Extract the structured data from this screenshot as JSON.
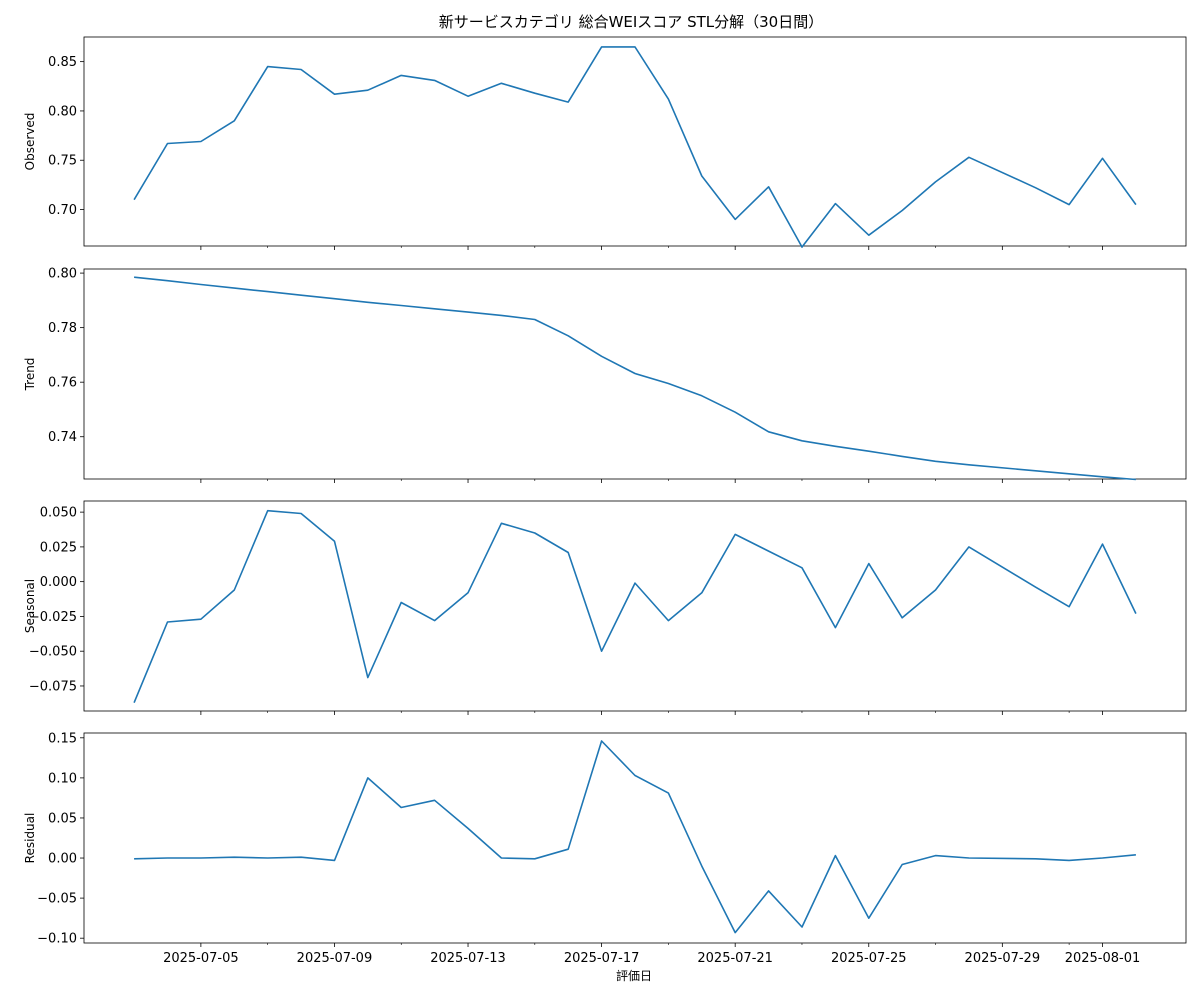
{
  "chart_data": {
    "type": "line",
    "title": "新サービスカテゴリ 総合WEIスコア STL分解（30日間）",
    "xlabel": "評価日",
    "line_color": "#1f77b4",
    "x": [
      "2025-07-03",
      "2025-07-04",
      "2025-07-05",
      "2025-07-06",
      "2025-07-07",
      "2025-07-08",
      "2025-07-09",
      "2025-07-10",
      "2025-07-11",
      "2025-07-12",
      "2025-07-13",
      "2025-07-14",
      "2025-07-15",
      "2025-07-16",
      "2025-07-17",
      "2025-07-18",
      "2025-07-19",
      "2025-07-20",
      "2025-07-21",
      "2025-07-22",
      "2025-07-23",
      "2025-07-24",
      "2025-07-25",
      "2025-07-26",
      "2025-07-27",
      "2025-07-28",
      "2025-07-30",
      "2025-07-31",
      "2025-08-01",
      "2025-08-02"
    ],
    "x_ticks": [
      "2025-07-05",
      "2025-07-09",
      "2025-07-13",
      "2025-07-17",
      "2025-07-21",
      "2025-07-25",
      "2025-07-29",
      "2025-08-01"
    ],
    "x_minor_ticks": [
      "2025-07-07",
      "2025-07-11",
      "2025-07-15",
      "2025-07-19",
      "2025-07-23",
      "2025-07-27",
      "2025-07-31"
    ],
    "panels": [
      {
        "name": "observed",
        "ylabel": "Observed",
        "ylim": [
          0.663,
          0.875
        ],
        "yticks": [
          0.7,
          0.75,
          0.8,
          0.85
        ],
        "ytick_labels": [
          "0.70",
          "0.75",
          "0.80",
          "0.85"
        ],
        "values": [
          0.71,
          0.767,
          0.769,
          0.79,
          0.845,
          0.842,
          0.817,
          0.821,
          0.836,
          0.831,
          0.815,
          0.828,
          0.818,
          0.809,
          0.865,
          0.865,
          0.812,
          0.734,
          0.69,
          0.723,
          0.662,
          0.706,
          0.674,
          0.699,
          0.728,
          0.753,
          0.722,
          0.705,
          0.752,
          0.705
        ]
      },
      {
        "name": "trend",
        "ylabel": "Trend",
        "ylim": [
          0.7245,
          0.8015
        ],
        "yticks": [
          0.74,
          0.76,
          0.78,
          0.8
        ],
        "ytick_labels": [
          "0.74",
          "0.76",
          "0.78",
          "0.80"
        ],
        "values": [
          0.7985,
          0.7972,
          0.7958,
          0.7945,
          0.7932,
          0.7919,
          0.7906,
          0.7893,
          0.7881,
          0.7869,
          0.7857,
          0.7845,
          0.783,
          0.777,
          0.7695,
          0.7632,
          0.7595,
          0.755,
          0.749,
          0.7418,
          0.7385,
          0.7365,
          0.7347,
          0.7328,
          0.731,
          0.7297,
          0.7275,
          0.7264,
          0.7253,
          0.7243
        ]
      },
      {
        "name": "seasonal",
        "ylabel": "Seasonal",
        "ylim": [
          -0.093,
          0.058
        ],
        "yticks": [
          -0.075,
          -0.05,
          -0.025,
          0.0,
          0.025,
          0.05
        ],
        "ytick_labels": [
          "−0.075",
          "−0.050",
          "−0.025",
          "0.000",
          "0.025",
          "0.050"
        ],
        "values": [
          -0.087,
          -0.029,
          -0.027,
          -0.006,
          0.051,
          0.049,
          0.029,
          -0.069,
          -0.015,
          -0.028,
          -0.008,
          0.042,
          0.035,
          0.021,
          -0.05,
          -0.001,
          -0.028,
          -0.008,
          0.034,
          0.022,
          0.01,
          -0.033,
          0.013,
          -0.026,
          -0.006,
          0.025,
          -0.004,
          -0.018,
          0.027,
          -0.023
        ]
      },
      {
        "name": "residual",
        "ylabel": "Residual",
        "ylim": [
          -0.106,
          0.156
        ],
        "yticks": [
          -0.1,
          -0.05,
          0.0,
          0.05,
          0.1,
          0.15
        ],
        "ytick_labels": [
          "−0.10",
          "−0.05",
          "0.00",
          "0.05",
          "0.10",
          "0.15"
        ],
        "values": [
          -0.001,
          0.0,
          0.0,
          0.001,
          0.0,
          0.001,
          -0.003,
          0.1,
          0.063,
          0.072,
          0.037,
          0.0,
          -0.001,
          0.011,
          0.146,
          0.103,
          0.081,
          -0.01,
          -0.093,
          -0.041,
          -0.086,
          0.003,
          -0.075,
          -0.008,
          0.003,
          0.0,
          -0.001,
          -0.003,
          0.0,
          0.004
        ]
      }
    ]
  }
}
